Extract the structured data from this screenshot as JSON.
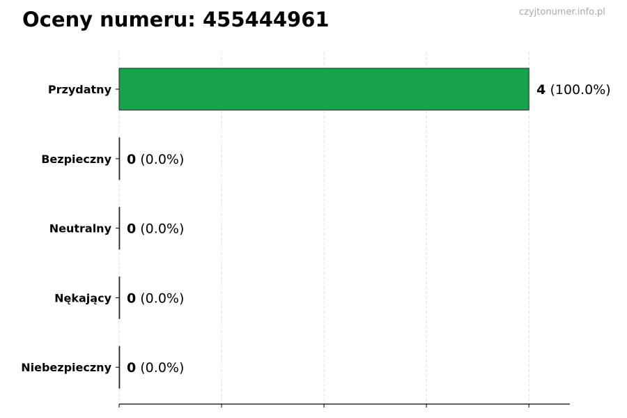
{
  "chart_data": {
    "type": "bar",
    "orientation": "horizontal",
    "title": "Oceny numeru: 455444961",
    "watermark": "czyjtonumer.info.pl",
    "categories": [
      "Przydatny",
      "Bezpieczny",
      "Neutralny",
      "Nękający",
      "Niebezpieczny"
    ],
    "values": [
      4,
      0,
      0,
      0,
      0
    ],
    "percent_labels": [
      "(100.0%)",
      "(0.0%)",
      "(0.0%)",
      "(0.0%)",
      "(0.0%)"
    ],
    "bar_colors": [
      "#17a34a",
      "#17a34a",
      "#17a34a",
      "#17a34a",
      "#17a34a"
    ],
    "xlim": [
      0,
      4.4
    ],
    "xticks": [
      0,
      1,
      2,
      3,
      4
    ],
    "xtick_labels_shown": false,
    "grid": "x, dashed",
    "xlabel": "",
    "ylabel": ""
  }
}
